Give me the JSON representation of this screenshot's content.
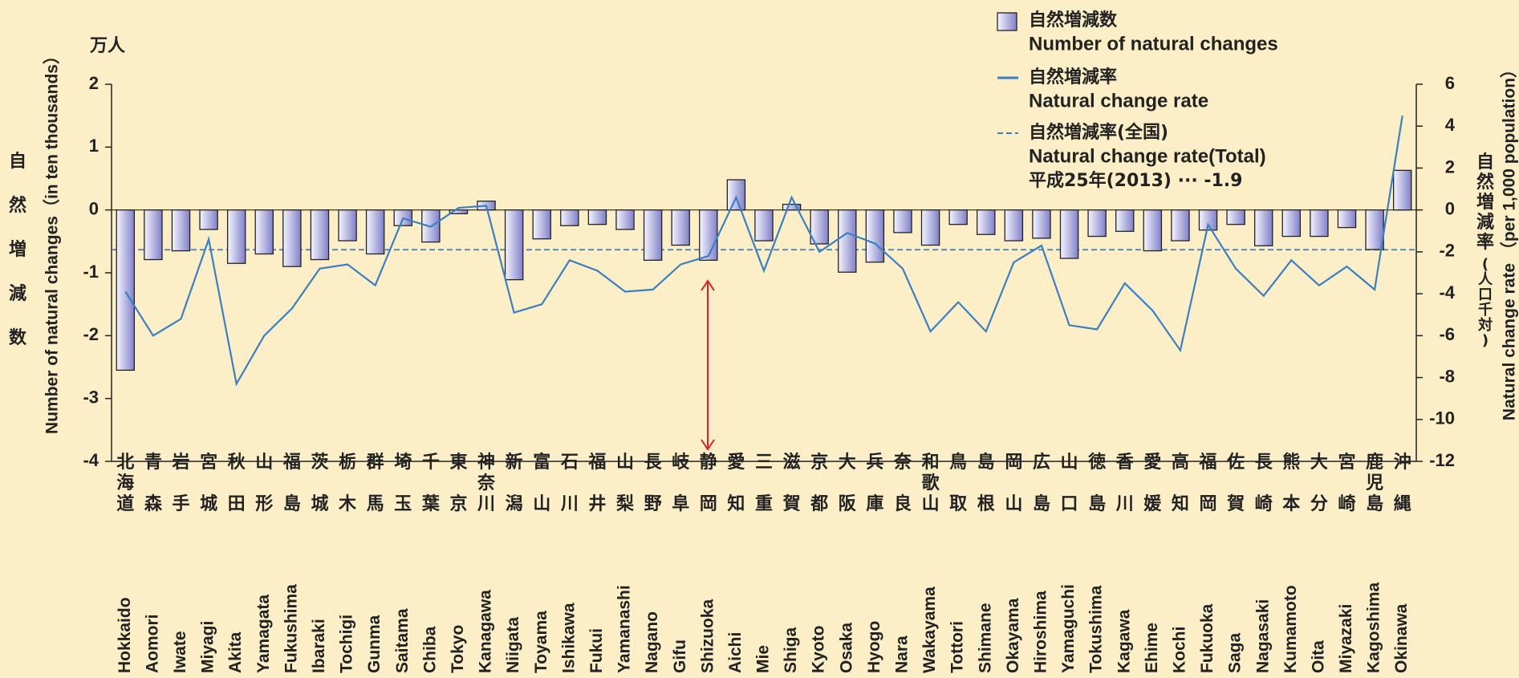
{
  "chart_data": {
    "type": "bar_line",
    "y_unit": "万人",
    "y_label_ja": "自然増減数",
    "y_label": "Number of  natural changes（in ten thousands）",
    "y2_label_ja": "自然増減率",
    "y2_unit_ja": "(人口千対)",
    "y2_label": "Natural change rate （per 1,000 population）",
    "categories": [
      "Hokkaido",
      "Aomori",
      "Iwate",
      "Miyagi",
      "Akita",
      "Yamagata",
      "Fukushima",
      "Ibaraki",
      "Tochigi",
      "Gunma",
      "Saitama",
      "Chiba",
      "Tokyo",
      "Kanagawa",
      "Niigata",
      "Toyama",
      "Ishikawa",
      "Fukui",
      "Yamanashi",
      "Nagano",
      "Gifu",
      "Shizuoka",
      "Aichi",
      "Mie",
      "Shiga",
      "Kyoto",
      "Osaka",
      "Hyogo",
      "Nara",
      "Wakayama",
      "Tottori",
      "Shimane",
      "Okayama",
      "Hiroshima",
      "Yamaguchi",
      "Tokushima",
      "Kagawa",
      "Ehime",
      "Kochi",
      "Fukuoka",
      "Saga",
      "Nagasaki",
      "Kumamoto",
      "Oita",
      "Miyazaki",
      "Kagoshima",
      "Okinawa"
    ],
    "categories_ja": [
      "北海道",
      "青森",
      "岩手",
      "宮城",
      "秋田",
      "山形",
      "福島",
      "茨城",
      "栃木",
      "群馬",
      "埼玉",
      "千葉",
      "東京",
      "神奈川",
      "新潟",
      "富山",
      "石川",
      "福井",
      "山梨",
      "長野",
      "岐阜",
      "静岡",
      "愛知",
      "三重",
      "滋賀",
      "京都",
      "大阪",
      "兵庫",
      "奈良",
      "和歌山",
      "鳥取",
      "島根",
      "岡山",
      "広島",
      "山口",
      "徳島",
      "香川",
      "愛媛",
      "高知",
      "福岡",
      "佐賀",
      "長崎",
      "熊本",
      "大分",
      "宮崎",
      "鹿児島",
      "沖縄"
    ],
    "series": [
      {
        "name": "自然増減数",
        "name_en": "Number of  natural changes",
        "type": "bar",
        "color": "#8080c8",
        "values": [
          -2.55,
          -0.79,
          -0.65,
          -0.31,
          -0.85,
          -0.7,
          -0.9,
          -0.79,
          -0.49,
          -0.7,
          -0.25,
          -0.51,
          -0.06,
          0.14,
          -1.11,
          -0.46,
          -0.25,
          -0.23,
          -0.31,
          -0.8,
          -0.56,
          -0.8,
          0.48,
          -0.49,
          0.09,
          -0.54,
          -0.99,
          -0.83,
          -0.36,
          -0.56,
          -0.23,
          -0.39,
          -0.49,
          -0.45,
          -0.77,
          -0.42,
          -0.34,
          -0.65,
          -0.49,
          -0.32,
          -0.23,
          -0.57,
          -0.42,
          -0.42,
          -0.28,
          -0.63,
          0.63
        ]
      },
      {
        "name": "自然増減率",
        "name_en": "Natural change rate",
        "type": "line",
        "axis": "y2",
        "color": "#3a7fc4",
        "values": [
          -3.9,
          -6.0,
          -5.2,
          -1.4,
          -8.3,
          -6.0,
          -4.7,
          -2.8,
          -2.6,
          -3.6,
          -0.4,
          -0.8,
          0.1,
          0.2,
          -4.9,
          -4.5,
          -2.4,
          -2.9,
          -3.9,
          -3.8,
          -2.6,
          -2.2,
          0.6,
          -2.9,
          0.6,
          -2.0,
          -1.1,
          -1.6,
          -2.8,
          -5.8,
          -4.4,
          -5.8,
          -2.5,
          -1.7,
          -5.5,
          -5.7,
          -3.5,
          -4.8,
          -6.7,
          -0.7,
          -2.8,
          -4.1,
          -2.4,
          -3.6,
          -2.7,
          -3.8,
          4.5
        ]
      }
    ],
    "reference": {
      "name": "自然増減率(全国)",
      "name_en": "Natural change rate(Total)",
      "note": "平成25年(2013) ··· -1.9",
      "value": -1.9,
      "axis": "y2",
      "color": "#3a7fc4"
    },
    "ylim": [
      -4,
      2
    ],
    "yticks": [
      -4,
      -3,
      -2,
      -1,
      0,
      1,
      2
    ],
    "y2lim": [
      -12,
      6
    ],
    "y2ticks": [
      -12,
      -10,
      -8,
      -6,
      -4,
      -2,
      0,
      2,
      4,
      6
    ]
  }
}
